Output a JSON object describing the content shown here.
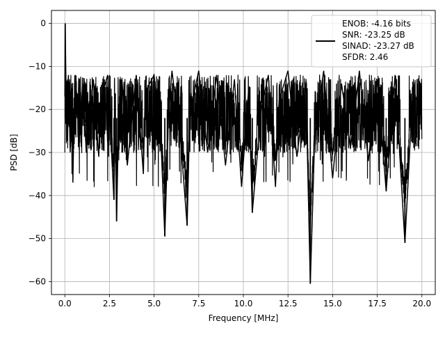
{
  "chart_data": {
    "type": "line",
    "title": "",
    "xlabel": "Frequency [MHz]",
    "ylabel": "PSD [dB]",
    "xlim": [
      -0.75,
      20.75
    ],
    "ylim": [
      -63.0,
      3.0
    ],
    "xticks": [
      0.0,
      2.5,
      5.0,
      7.5,
      10.0,
      12.5,
      15.0,
      17.5,
      20.0
    ],
    "xtick_labels": [
      "0.0",
      "2.5",
      "5.0",
      "7.5",
      "10.0",
      "12.5",
      "15.0",
      "17.5",
      "20.0"
    ],
    "yticks": [
      0,
      -10,
      -20,
      -30,
      -40,
      -50,
      -60
    ],
    "ytick_labels": [
      "0",
      "−10",
      "−20",
      "−30",
      "−40",
      "−50",
      "−60"
    ],
    "grid": true,
    "legend_placement": "upper right",
    "line_color": "#000000",
    "grid_color": "#b0b0b0",
    "legend": {
      "lines": [
        "ENOB: -4.16 bits",
        "SNR: -23.25 dB",
        "SINAD: -23.27 dB",
        "SFDR: 2.46"
      ]
    },
    "series": [
      {
        "description": "dense noise-like PSD trace; band roughly -12 to -30 dB",
        "x": [
          0.0,
          0.02,
          0.05,
          0.1,
          0.2,
          0.3,
          0.4,
          0.45,
          0.5,
          0.6,
          0.8,
          1.0,
          1.2,
          1.6,
          1.9,
          2.0,
          2.4,
          2.75,
          2.8,
          2.9,
          3.0,
          3.2,
          3.5,
          4.0,
          4.4,
          4.5,
          5.0,
          5.4,
          5.6,
          5.8,
          6.0,
          6.5,
          6.85,
          7.0,
          7.5,
          8.0,
          8.5,
          9.0,
          9.5,
          9.9,
          10.3,
          10.5,
          11.0,
          11.4,
          11.8,
          12.0,
          12.5,
          13.0,
          13.5,
          13.75,
          14.0,
          14.5,
          15.0,
          15.5,
          16.0,
          16.5,
          17.0,
          17.5,
          18.0,
          18.5,
          19.05,
          19.5,
          20.0
        ],
        "y": [
          -17,
          0,
          -10,
          -22,
          -12,
          -30,
          -15,
          -37,
          -25,
          -12,
          -28,
          -14,
          -30,
          -13,
          -31,
          -18,
          -12,
          -41,
          -20,
          -46,
          -24,
          -13,
          -33,
          -12,
          -35,
          -16,
          -12,
          -29,
          -49.5,
          -22,
          -11,
          -28,
          -47,
          -21,
          -11,
          -30,
          -12,
          -33,
          -13,
          -38,
          -15,
          -44,
          -20,
          -12,
          -38,
          -18,
          -11,
          -31,
          -14,
          -60.5,
          -26,
          -11,
          -36,
          -14,
          -29,
          -11,
          -32,
          -13,
          -39,
          -12,
          -51,
          -15,
          -22
        ]
      }
    ]
  }
}
